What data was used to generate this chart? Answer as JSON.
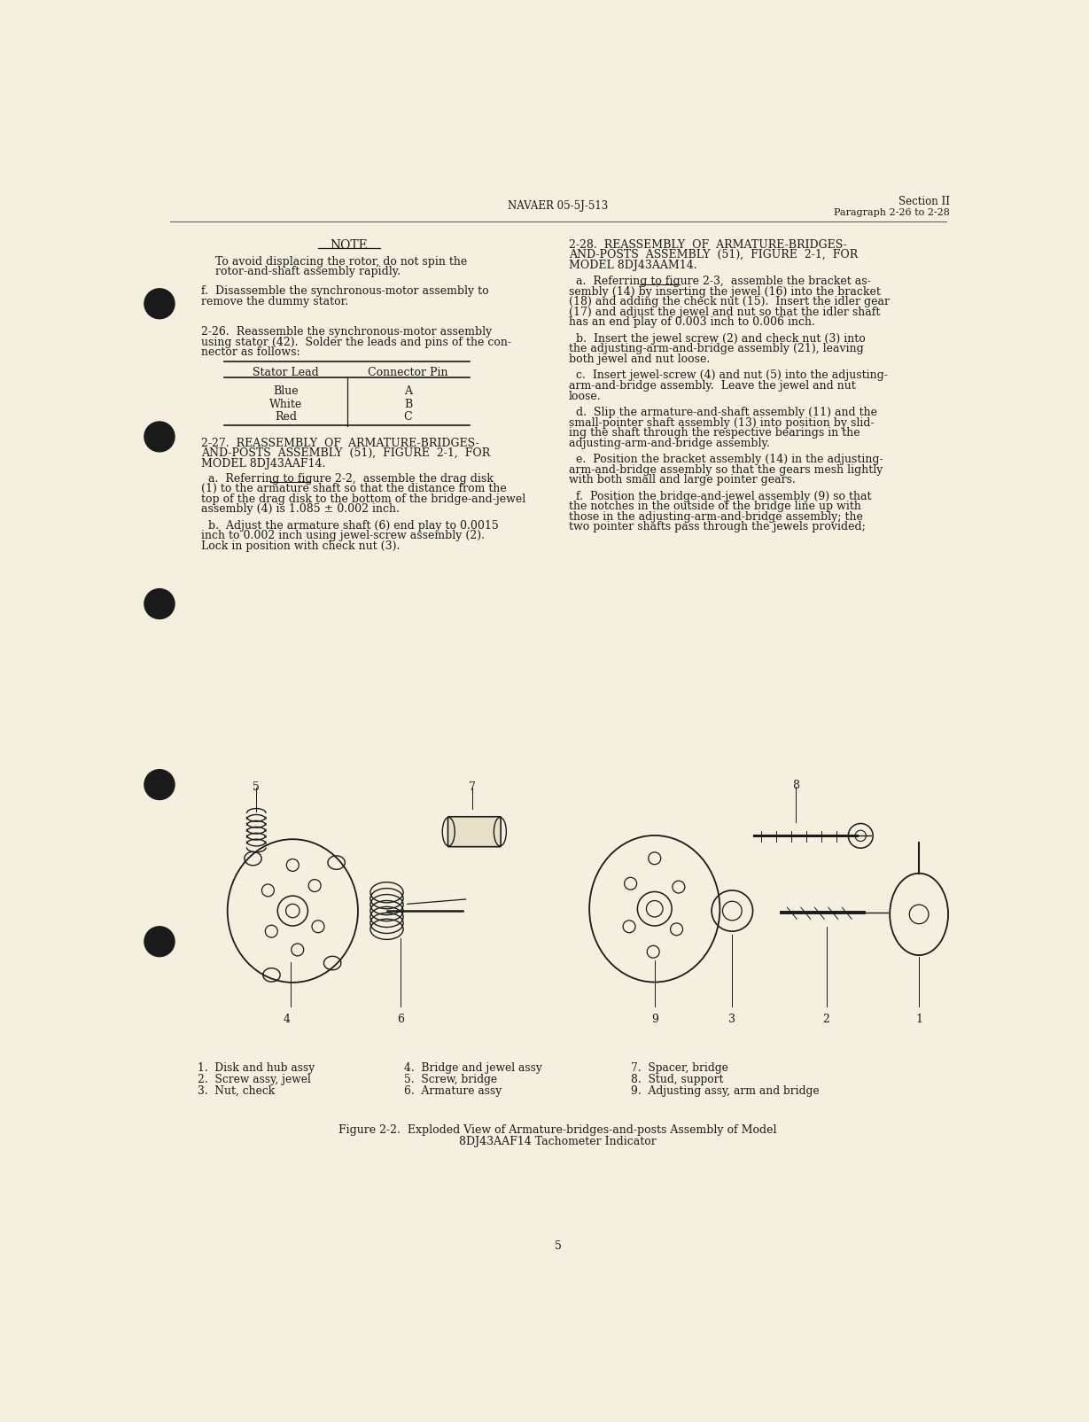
{
  "bg_color": "#f5efe0",
  "header_left": "NAVAER 05-5J-513",
  "header_right_line1": "Section II",
  "header_right_line2": "Paragraph 2-26 to 2-28",
  "page_number": "5",
  "note_title": "NOTE",
  "note_text1": "To avoid displacing the rotor, do not spin the",
  "note_text2": "rotor-and-shaft assembly rapidly.",
  "note_text3": "f.  Disassemble the synchronous-motor assembly to",
  "note_text4": "remove the dummy stator.",
  "para226_title": "2-26.  Reassemble the synchronous-motor assembly",
  "para226_text1": "using stator (42).  Solder the leads and pins of the con-",
  "para226_text2": "nector as follows:",
  "table_col1": "Stator Lead",
  "table_col2": "Connector Pin",
  "table_rows": [
    [
      "Blue",
      "A"
    ],
    [
      "White",
      "B"
    ],
    [
      "Red",
      "C"
    ]
  ],
  "para227_title": "2-27.  REASSEMBLY  OF  ARMATURE-BRIDGES-",
  "para227_title2": "AND-POSTS  ASSEMBLY  (51),  FIGURE  2-1,  FOR",
  "para227_title3": "MODEL 8DJ43AAF14.",
  "para227a": "  a.  Referring to figure 2-2,  assemble the drag disk",
  "para227a2": "(1) to the armature shaft so that the distance from the",
  "para227a3": "top of the drag disk to the bottom of the bridge-and-jewel",
  "para227a4": "assembly (4) is 1.085 ± 0.002 inch.",
  "para227b": "  b.  Adjust the armature shaft (6) end play to 0.0015",
  "para227b2": "inch to 0.002 inch using jewel-screw assembly (2).",
  "para227b3": "Lock in position with check nut (3).",
  "para228_title": "2-28.  REASSEMBLY  OF  ARMATURE-BRIDGES-",
  "para228_title2": "AND-POSTS  ASSEMBLY  (51),  FIGURE  2-1,  FOR",
  "para228_title3": "MODEL 8DJ43AAM14.",
  "para228a": "  a.  Referring to figure 2-3,  assemble the bracket as-",
  "para228a2": "sembly (14) by inserting the jewel (16) into the bracket",
  "para228a3": "(18) and adding the check nut (15).  Insert the idler gear",
  "para228a4": "(17) and adjust the jewel and nut so that the idler shaft",
  "para228a5": "has an end play of 0.003 inch to 0.006 inch.",
  "para228b": "  b.  Insert the jewel screw (2) and check nut (3) into",
  "para228b2": "the adjusting-arm-and-bridge assembly (21), leaving",
  "para228b3": "both jewel and nut loose.",
  "para228c": "  c.  Insert jewel-screw (4) and nut (5) into the adjusting-",
  "para228c2": "arm-and-bridge assembly.  Leave the jewel and nut",
  "para228c3": "loose.",
  "para228d": "  d.  Slip the armature-and-shaft assembly (11) and the",
  "para228d2": "small-pointer shaft assembly (13) into position by slid-",
  "para228d3": "ing the shaft through the respective bearings in the",
  "para228d4": "adjusting-arm-and-bridge assembly.",
  "para228e": "  e.  Position the bracket assembly (14) in the adjusting-",
  "para228e2": "arm-and-bridge assembly so that the gears mesh lightly",
  "para228e3": "with both small and large pointer gears.",
  "para228f": "  f.  Position the bridge-and-jewel assembly (9) so that",
  "para228f2": "the notches in the outside of the bridge line up with",
  "para228f3": "those in the adjusting-arm-and-bridge assembly; the",
  "para228f4": "two pointer shafts pass through the jewels provided;",
  "fig_caption1": "Figure 2-2.  Exploded View of Armature-bridges-and-posts Assembly of Model",
  "fig_caption2": "8DJ43AAF14 Tachometer Indicator",
  "legend_items": [
    "1.  Disk and hub assy",
    "2.  Screw assy, jewel",
    "3.  Nut, check",
    "4.  Bridge and jewel assy",
    "5.  Screw, bridge",
    "6.  Armature assy",
    "7.  Spacer, bridge",
    "8.  Stud, support",
    "9.  Adjusting assy, arm and bridge"
  ]
}
